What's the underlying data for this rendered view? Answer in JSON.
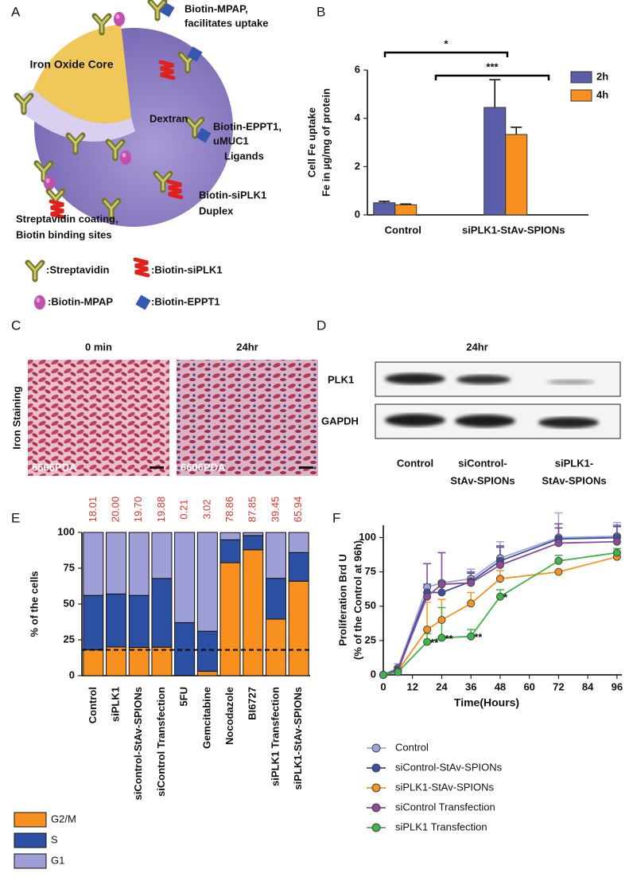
{
  "panel_labels": [
    "A",
    "B",
    "C",
    "D",
    "E",
    "F"
  ],
  "diagram": {
    "core": "Iron Oxide Core",
    "shell": "Dextran",
    "callouts": [
      [
        "Biotin-MPAP,",
        "facilitates uptake"
      ],
      [
        "Biotin-EPPT1,",
        "uMUC1",
        "Ligands"
      ],
      [
        "Biotin-siPLK1",
        "Duplex"
      ],
      [
        "Streptavidin coating,",
        "Biotin binding sites"
      ]
    ],
    "legend": [
      ":Streptavidin",
      ":Biotin-siPLK1",
      ":Biotin-MPAP",
      ":Biotin-EPPT1"
    ]
  },
  "staining": {
    "titles": [
      "0 min",
      "24hr"
    ],
    "side_label": "Iron Staining",
    "sample": [
      "6606PDA",
      "6606PDA"
    ]
  },
  "blot": {
    "title": "24hr",
    "rows": [
      "PLK1",
      "GAPDH"
    ],
    "lanes": [
      [
        "Control"
      ],
      [
        "siControl-",
        "StAv-SPIONs"
      ],
      [
        "siPLK1-",
        "StAv-SPIONs"
      ]
    ]
  },
  "chart_data": [
    {
      "type": "bar",
      "ylabel": [
        "Cell Fe uptake",
        "Fe in µg/mg of protein"
      ],
      "categories": [
        "Control",
        "siPLK1-StAv-SPIONs"
      ],
      "series": [
        {
          "name": "2h",
          "color": "#5b5ea8",
          "values": [
            0.5,
            4.45
          ],
          "errors": [
            0.06,
            1.15
          ]
        },
        {
          "name": "4h",
          "color": "#f7901e",
          "values": [
            0.42,
            3.33
          ],
          "errors": [
            0.03,
            0.3
          ]
        }
      ],
      "ylim": [
        0,
        6
      ],
      "yticks": [
        0,
        2,
        4,
        6
      ],
      "annotations": [
        "*",
        "***"
      ],
      "legend": "right"
    },
    {
      "type": "stacked_bar",
      "ylabel": [
        "% of the cells"
      ],
      "categories": [
        "Control",
        "siPLK1",
        "siControl-StAv-SPIONs",
        "siControl Transfection",
        "5FU",
        "Gemcitabine",
        "Nocodazole",
        "BI6727",
        "siPLK1 Transfection",
        "siPLK1-StAv-SPIONs"
      ],
      "series": [
        {
          "name": "G2/M",
          "color": "#f7901e",
          "values": [
            18.01,
            20.0,
            19.7,
            19.88,
            0.21,
            3.02,
            78.86,
            87.85,
            39.45,
            65.94
          ],
          "value_labels": [
            "18.01",
            "20.00",
            "19.70",
            "19.88",
            "0.21",
            "3.02",
            "78.86",
            "87.85",
            "39.45",
            "65.94"
          ],
          "label_color": "#e8322a"
        },
        {
          "name": "S",
          "color": "#2b4fa3",
          "values": [
            38,
            37,
            36.3,
            48,
            36.8,
            28,
            16,
            10,
            28.5,
            20
          ]
        },
        {
          "name": "G1",
          "color": "#9d9fd6",
          "values": [
            44,
            43,
            44,
            32,
            63,
            69,
            5,
            2,
            32,
            14
          ]
        }
      ],
      "ylim": [
        0,
        100
      ],
      "yticks": [
        0,
        25,
        50,
        75,
        100
      ],
      "reference_line": 18
    },
    {
      "type": "line",
      "xlabel": "Time(Hours)",
      "ylabel": [
        "Proliferation Brd U",
        "(% of the Control at 96h)"
      ],
      "x": [
        0,
        6,
        18,
        24,
        36,
        48,
        72,
        96
      ],
      "series": [
        {
          "name": "Control",
          "color": "#9fa3dc",
          "values": [
            0,
            5,
            64,
            67,
            70,
            85,
            100,
            101
          ],
          "errors": [
            0,
            3,
            17,
            22,
            7,
            12,
            18,
            10
          ]
        },
        {
          "name": "siControl-StAv-SPIONs",
          "color": "#3a4fa0",
          "values": [
            0,
            4,
            60,
            60,
            68,
            83,
            99,
            100
          ],
          "errors": [
            0,
            2,
            6,
            8,
            6,
            10,
            8,
            8
          ]
        },
        {
          "name": "siPLK1-StAv-SPIONs",
          "color": "#f7931e",
          "values": [
            0,
            3,
            33,
            40,
            52,
            70,
            75,
            86
          ],
          "errors": [
            0,
            2,
            20,
            15,
            8,
            6,
            0,
            0
          ]
        },
        {
          "name": "siControl Transfection",
          "color": "#8b4a9e",
          "values": [
            0,
            3,
            57,
            66,
            67,
            80,
            96,
            97
          ],
          "errors": [
            0,
            2,
            24,
            23,
            8,
            14,
            14,
            12
          ]
        },
        {
          "name": "siPLK1 Transfection",
          "color": "#3db54a",
          "values": [
            0,
            2,
            24,
            27,
            28,
            57,
            83,
            89
          ],
          "errors": [
            0,
            1,
            6,
            22,
            5,
            5,
            4,
            3
          ]
        }
      ],
      "xlim": [
        0,
        98
      ],
      "xticks": [
        0,
        12,
        24,
        36,
        48,
        60,
        72,
        84,
        96
      ],
      "ylim": [
        0,
        109
      ],
      "yticks": [
        0,
        25,
        50,
        75,
        100
      ],
      "annotations": [
        {
          "text": "**",
          "x": 18
        },
        {
          "text": "**",
          "x": 24
        },
        {
          "text": "**",
          "x": 36
        },
        {
          "text": "*",
          "x": 48
        }
      ]
    }
  ]
}
